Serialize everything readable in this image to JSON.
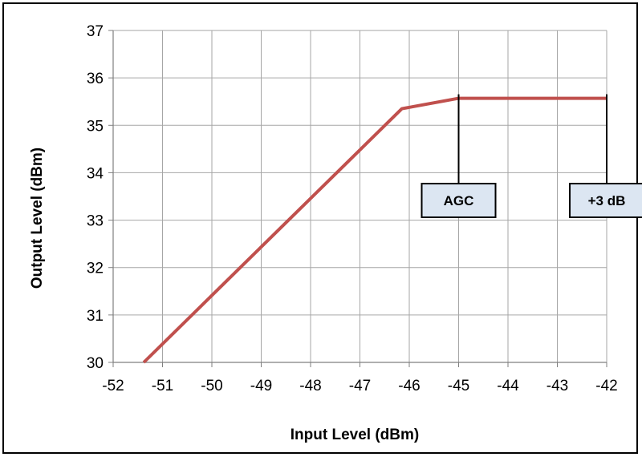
{
  "chart_data": {
    "type": "line",
    "title": "",
    "xlabel": "Input Level (dBm)",
    "ylabel": "Output Level (dBm)",
    "xlim": [
      -52,
      -42
    ],
    "ylim": [
      30,
      37
    ],
    "x_ticks": [
      -52,
      -51,
      -50,
      -49,
      -48,
      -47,
      -46,
      -45,
      -44,
      -43,
      -42
    ],
    "x_tick_labels": [
      "-52",
      "-51",
      "-50",
      "-49",
      "-48",
      "-47",
      "-46",
      "-45",
      "-44",
      "-43",
      "-42"
    ],
    "y_ticks": [
      30,
      31,
      32,
      33,
      34,
      35,
      36,
      37
    ],
    "y_tick_labels": [
      "30",
      "31",
      "32",
      "33",
      "34",
      "35",
      "36",
      "37"
    ],
    "grid": true,
    "legend": "none",
    "series": [
      {
        "color": "#c0504d",
        "points": [
          {
            "x": -51.38,
            "y": 30.0
          },
          {
            "x": -46.15,
            "y": 35.35
          },
          {
            "x": -45.0,
            "y": 35.57
          },
          {
            "x": -42.0,
            "y": 35.57
          }
        ]
      }
    ],
    "annotations": [
      {
        "label": "AGC",
        "x": -45,
        "y": 35.57
      },
      {
        "label": "+3 dB",
        "x": -42,
        "y": 35.57
      }
    ]
  },
  "colors": {
    "line": "#c0504d",
    "grid": "#a6a6a6",
    "annotation_box_fill": "#dce6f2",
    "annotation_box_border": "#000000"
  }
}
